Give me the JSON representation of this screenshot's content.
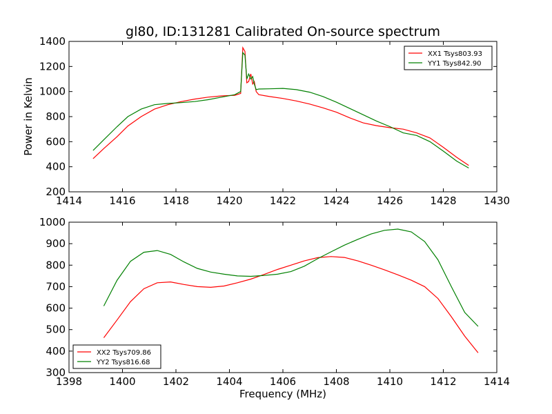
{
  "figure": {
    "title": "gl80, ID:131281 Calibrated On-source spectrum",
    "ylabel": "Power in Kelvin",
    "xlabel": "Frequency (MHz)"
  },
  "chart_data": [
    {
      "type": "line",
      "title": "gl80, ID:131281 Calibrated On-source spectrum",
      "xlabel": "",
      "ylabel": "Power in Kelvin",
      "xlim": [
        1414,
        1430
      ],
      "ylim": [
        200,
        1400
      ],
      "xticks": [
        "1414",
        "1416",
        "1418",
        "1420",
        "1422",
        "1424",
        "1426",
        "1428",
        "1430"
      ],
      "yticks": [
        "200",
        "400",
        "600",
        "800",
        "1000",
        "1200",
        "1400"
      ],
      "legend_position": "top-right",
      "series": [
        {
          "name": "XX1 Tsys803.93",
          "color": "#ff0000",
          "x": [
            1414.9,
            1415.3,
            1415.8,
            1416.2,
            1416.7,
            1417.2,
            1417.7,
            1418.2,
            1418.7,
            1419.2,
            1419.7,
            1420.2,
            1420.42,
            1420.5,
            1420.58,
            1420.65,
            1420.72,
            1420.8,
            1420.87,
            1420.93,
            1421.0,
            1421.1,
            1421.5,
            1422.0,
            1422.5,
            1423.0,
            1423.5,
            1424.0,
            1424.5,
            1425.0,
            1425.5,
            1426.0,
            1426.5,
            1427.0,
            1427.5,
            1428.0,
            1428.5,
            1428.95
          ],
          "y": [
            465,
            545,
            640,
            725,
            800,
            860,
            895,
            920,
            940,
            955,
            965,
            970,
            985,
            1350,
            1320,
            1070,
            1080,
            1140,
            1060,
            1080,
            1000,
            975,
            960,
            945,
            925,
            900,
            870,
            835,
            790,
            750,
            728,
            712,
            700,
            670,
            630,
            555,
            475,
            410
          ]
        },
        {
          "name": "YY1 Tsys842.90",
          "color": "#008000",
          "x": [
            1414.9,
            1415.3,
            1415.8,
            1416.2,
            1416.7,
            1417.2,
            1417.7,
            1418.2,
            1418.7,
            1419.2,
            1419.7,
            1420.2,
            1420.42,
            1420.5,
            1420.58,
            1420.65,
            1420.72,
            1420.8,
            1420.87,
            1420.93,
            1421.0,
            1421.1,
            1421.5,
            1422.0,
            1422.5,
            1423.0,
            1423.5,
            1424.0,
            1424.5,
            1425.0,
            1425.5,
            1426.0,
            1426.5,
            1427.0,
            1427.5,
            1428.0,
            1428.5,
            1428.95
          ],
          "y": [
            530,
            615,
            720,
            800,
            860,
            895,
            905,
            912,
            920,
            935,
            955,
            975,
            1000,
            1310,
            1290,
            1100,
            1140,
            1100,
            1120,
            1060,
            1015,
            1020,
            1022,
            1025,
            1015,
            995,
            960,
            915,
            865,
            815,
            765,
            720,
            670,
            650,
            600,
            525,
            445,
            390
          ]
        }
      ]
    },
    {
      "type": "line",
      "title": "",
      "xlabel": "Frequency (MHz)",
      "ylabel": "",
      "xlim": [
        1398,
        1414
      ],
      "ylim": [
        300,
        1000
      ],
      "xticks": [
        "1398",
        "1400",
        "1402",
        "1404",
        "1406",
        "1408",
        "1410",
        "1412",
        "1414"
      ],
      "yticks": [
        "300",
        "400",
        "500",
        "600",
        "700",
        "800",
        "900",
        "1000"
      ],
      "legend_position": "bottom-left",
      "series": [
        {
          "name": "XX2 Tsys709.86",
          "color": "#ff0000",
          "x": [
            1399.3,
            1399.8,
            1400.3,
            1400.8,
            1401.3,
            1401.8,
            1402.3,
            1402.8,
            1403.3,
            1403.8,
            1404.3,
            1404.8,
            1405.3,
            1405.8,
            1406.3,
            1406.8,
            1407.3,
            1407.8,
            1408.3,
            1408.8,
            1409.3,
            1409.8,
            1410.3,
            1410.8,
            1411.3,
            1411.8,
            1412.3,
            1412.8,
            1413.3
          ],
          "y": [
            462,
            545,
            630,
            690,
            718,
            722,
            710,
            700,
            697,
            703,
            718,
            735,
            757,
            780,
            800,
            820,
            835,
            840,
            836,
            820,
            800,
            778,
            755,
            730,
            700,
            645,
            560,
            470,
            392
          ]
        },
        {
          "name": "YY2 Tsys816.68",
          "color": "#008000",
          "x": [
            1399.3,
            1399.8,
            1400.3,
            1400.8,
            1401.3,
            1401.8,
            1402.3,
            1402.8,
            1403.3,
            1403.8,
            1404.3,
            1404.8,
            1405.3,
            1405.8,
            1406.3,
            1406.8,
            1407.3,
            1407.8,
            1408.3,
            1408.8,
            1409.3,
            1409.8,
            1410.3,
            1410.8,
            1411.3,
            1411.8,
            1412.3,
            1412.8,
            1413.3
          ],
          "y": [
            610,
            730,
            818,
            860,
            868,
            850,
            815,
            785,
            768,
            758,
            750,
            748,
            752,
            758,
            770,
            795,
            830,
            862,
            893,
            920,
            945,
            962,
            968,
            955,
            910,
            825,
            700,
            580,
            515
          ]
        }
      ]
    }
  ]
}
